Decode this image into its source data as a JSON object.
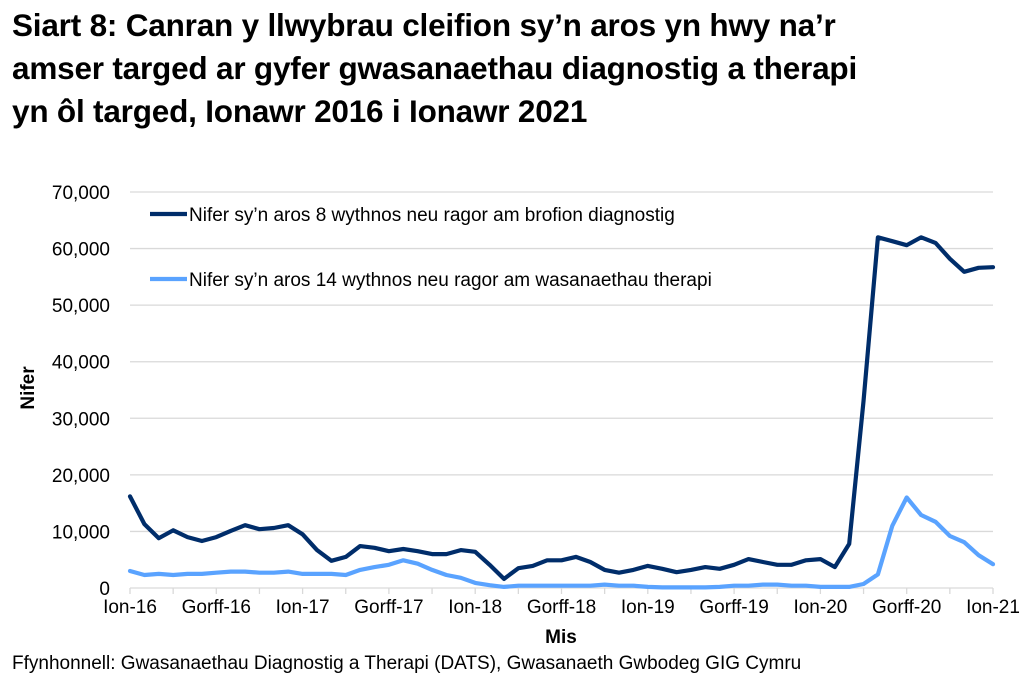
{
  "title": {
    "line1": "Siart 8: Canran y llwybrau cleifion sy’n aros yn hwy na’r",
    "line2": "amser targed ar gyfer gwasanaethau diagnostig a therapi",
    "line3": "yn ôl targed, Ionawr 2016 i Ionawr 2021"
  },
  "source": "Ffynhonnell: Gwasanaethau Diagnostig a Therapi (DATS), Gwasanaeth Gwbodeg GIG Cymru",
  "chart_data": {
    "type": "line",
    "title": "Siart 8: Canran y llwybrau cleifion sy’n aros yn hwy na’r amser targed ar gyfer gwasanaethau diagnostig a therapi yn ôl targed, Ionawr 2016 i Ionawr 2021",
    "xlabel": "Mis",
    "ylabel": "Nifer",
    "ylim": [
      0,
      70000
    ],
    "yticks": [
      0,
      10000,
      20000,
      30000,
      40000,
      50000,
      60000,
      70000
    ],
    "ytick_labels": [
      "0",
      "10,000",
      "20,000",
      "30,000",
      "40,000",
      "50,000",
      "60,000",
      "70,000"
    ],
    "xtick_labels": [
      "Ion-16",
      "Gorff-16",
      "Ion-17",
      "Gorff-17",
      "Ion-18",
      "Gorff-18",
      "Ion-19",
      "Gorff-19",
      "Ion-20",
      "Gorff-20",
      "Ion-21"
    ],
    "xtick_positions": [
      0,
      6,
      12,
      18,
      24,
      30,
      36,
      42,
      48,
      54,
      60
    ],
    "grid": true,
    "legend_position": "top-left inside",
    "x": [
      "2016-01",
      "2016-02",
      "2016-03",
      "2016-04",
      "2016-05",
      "2016-06",
      "2016-07",
      "2016-08",
      "2016-09",
      "2016-10",
      "2016-11",
      "2016-12",
      "2017-01",
      "2017-02",
      "2017-03",
      "2017-04",
      "2017-05",
      "2017-06",
      "2017-07",
      "2017-08",
      "2017-09",
      "2017-10",
      "2017-11",
      "2017-12",
      "2018-01",
      "2018-02",
      "2018-03",
      "2018-04",
      "2018-05",
      "2018-06",
      "2018-07",
      "2018-08",
      "2018-09",
      "2018-10",
      "2018-11",
      "2018-12",
      "2019-01",
      "2019-02",
      "2019-03",
      "2019-04",
      "2019-05",
      "2019-06",
      "2019-07",
      "2019-08",
      "2019-09",
      "2019-10",
      "2019-11",
      "2019-12",
      "2020-01",
      "2020-02",
      "2020-03",
      "2020-04",
      "2020-05",
      "2020-06",
      "2020-07",
      "2020-08",
      "2020-09",
      "2020-10",
      "2020-11",
      "2020-12",
      "2021-01"
    ],
    "series": [
      {
        "name": "Nifer sy’n aros 8 wythnos neu ragor am brofion diagnostig",
        "color": "#002d6a",
        "values": [
          16200,
          11300,
          8800,
          10200,
          9000,
          8300,
          9000,
          10100,
          11100,
          10400,
          10600,
          11100,
          9500,
          6700,
          4800,
          5500,
          7400,
          7100,
          6500,
          6900,
          6500,
          6000,
          6000,
          6700,
          6400,
          4100,
          1600,
          3500,
          3900,
          4900,
          4900,
          5500,
          4600,
          3200,
          2700,
          3200,
          3900,
          3400,
          2800,
          3200,
          3700,
          3400,
          4100,
          5100,
          4600,
          4100,
          4100,
          4900,
          5100,
          3700,
          7800,
          33000,
          62000,
          61300,
          60600,
          62000,
          61000,
          58200,
          55900,
          56600,
          56700
        ]
      },
      {
        "name": "Nifer sy’n aros 14 wythnos neu ragor am wasanaethau therapi",
        "color": "#5aa3ff",
        "values": [
          3000,
          2300,
          2500,
          2300,
          2500,
          2500,
          2700,
          2900,
          2900,
          2700,
          2700,
          2900,
          2500,
          2500,
          2500,
          2300,
          3200,
          3700,
          4100,
          4900,
          4300,
          3200,
          2300,
          1800,
          900,
          500,
          200,
          400,
          400,
          400,
          400,
          400,
          400,
          600,
          400,
          400,
          200,
          100,
          100,
          100,
          100,
          200,
          400,
          400,
          600,
          600,
          400,
          400,
          200,
          200,
          200,
          700,
          2400,
          11000,
          16000,
          12900,
          11700,
          9200,
          8100,
          5800,
          4200
        ]
      }
    ]
  }
}
